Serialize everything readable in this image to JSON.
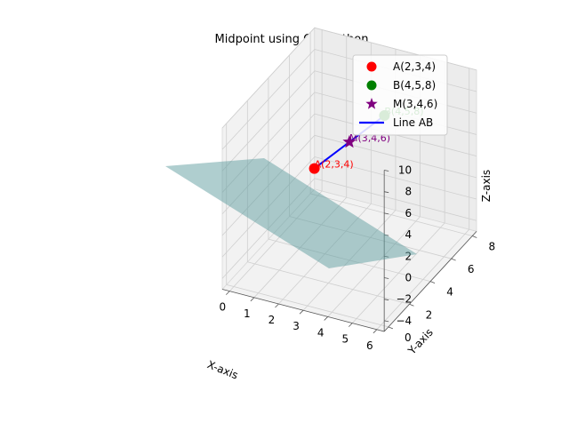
{
  "chart_data": {
    "type": "scatter",
    "title": "Midpoint using C + Python",
    "xlabel": "X-axis",
    "ylabel": "Y-axis",
    "zlabel": "Z-axis",
    "xlim": [
      -0.3,
      6.3
    ],
    "ylim": [
      -0.4,
      8.4
    ],
    "zlim": [
      -5,
      10
    ],
    "x_ticks": [
      "0",
      "1",
      "2",
      "3",
      "4",
      "5",
      "6"
    ],
    "y_ticks": [
      "0",
      "2",
      "4",
      "6",
      "8"
    ],
    "z_ticks": [
      "−4",
      "−2",
      "0",
      "2",
      "4",
      "6",
      "8",
      "10"
    ],
    "grid": true,
    "legend_position": "top-right",
    "points": [
      {
        "name": "A(2,3,4)",
        "label": "A(2,3,4)",
        "x": 2,
        "y": 3,
        "z": 4,
        "color": "#ff0000",
        "marker": "circle"
      },
      {
        "name": "B(4,5,8)",
        "label": "B(4,5,8)",
        "x": 4,
        "y": 5,
        "z": 8,
        "color": "#008000",
        "marker": "circle"
      },
      {
        "name": "M(3,4,6)",
        "label": "M(3,4,6)",
        "x": 3,
        "y": 4,
        "z": 6,
        "color": "#800080",
        "marker": "star"
      }
    ],
    "line": {
      "name": "Line AB",
      "from": [
        2,
        3,
        4
      ],
      "to": [
        4,
        5,
        8
      ],
      "color": "#0000ff"
    },
    "plane": {
      "color": "#5f9ea0",
      "opacity": 0.5
    }
  }
}
